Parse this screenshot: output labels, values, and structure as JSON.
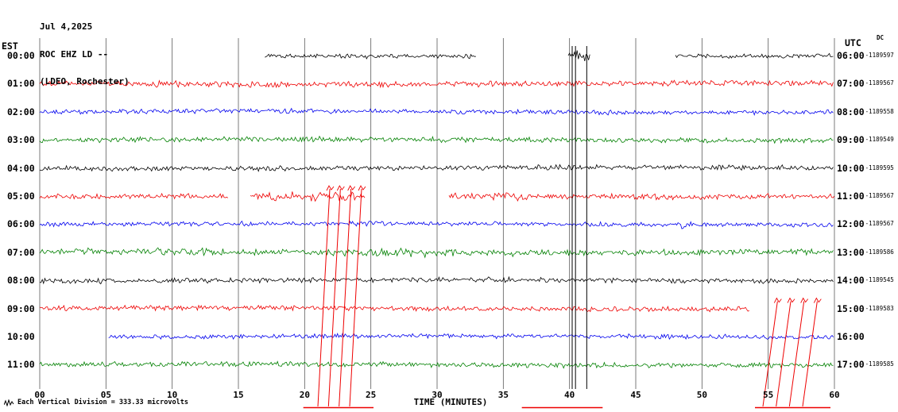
{
  "header": {
    "date": "Jul 4,2025",
    "station": "ROC EHZ LD --",
    "location": "(LDEO, Rochester)"
  },
  "axes": {
    "left_label": "EST",
    "right_label": "UTC",
    "dc_label": "DC"
  },
  "footer": {
    "scale_text": "Each Vertical Division =  333.33 microvolts"
  },
  "palette": {
    "black": "#000000",
    "red": "#ee0000",
    "blue": "#0000ee",
    "green": "#008000",
    "grid": "#5a5a5a"
  },
  "chart_data": {
    "type": "line",
    "title": "ROC EHZ LD -- (LDEO, Rochester) helicorder, Jul 4,2025",
    "xlabel": "TIME (MINUTES)",
    "x_ticks": [
      "00",
      "05",
      "10",
      "15",
      "20",
      "25",
      "30",
      "35",
      "40",
      "45",
      "50",
      "55",
      "60"
    ],
    "x_range_minutes": [
      0,
      60
    ],
    "volts_per_division": "333.33 microvolts",
    "rows": [
      {
        "est": "00:00",
        "utc": "06:00",
        "dc": "-1189597",
        "color": "black",
        "amp": 2.2,
        "segments": [
          [
            17,
            33
          ],
          [
            39.9,
            41.6
          ],
          [
            48,
            60
          ]
        ],
        "bursts": [
          [
            40.0,
            41.5,
            5
          ]
        ]
      },
      {
        "est": "01:00",
        "utc": "07:00",
        "dc": "-1189567",
        "color": "red",
        "amp": 3.0,
        "segments": [
          [
            0,
            60
          ]
        ]
      },
      {
        "est": "02:00",
        "utc": "08:00",
        "dc": "-1189558",
        "color": "blue",
        "amp": 2.4,
        "segments": [
          [
            0,
            60
          ]
        ]
      },
      {
        "est": "03:00",
        "utc": "09:00",
        "dc": "-1189549",
        "color": "green",
        "amp": 2.6,
        "segments": [
          [
            0,
            60
          ]
        ]
      },
      {
        "est": "04:00",
        "utc": "10:00",
        "dc": "-1189595",
        "color": "black",
        "amp": 2.6,
        "segments": [
          [
            0,
            60
          ]
        ]
      },
      {
        "est": "05:00",
        "utc": "11:00",
        "dc": "-1189567",
        "color": "red",
        "amp": 2.8,
        "segments": [
          [
            0,
            14.3
          ],
          [
            15.9,
            24.6
          ],
          [
            30.9,
            60
          ]
        ],
        "bursts": [
          [
            16,
            24.6,
            4.5
          ],
          [
            31,
            37,
            4.0
          ]
        ]
      },
      {
        "est": "06:00",
        "utc": "12:00",
        "dc": "-1189567",
        "color": "blue",
        "amp": 2.4,
        "segments": [
          [
            0,
            60
          ]
        ],
        "bursts": [
          [
            48.2,
            49.2,
            4.0
          ]
        ]
      },
      {
        "est": "07:00",
        "utc": "13:00",
        "dc": "-1189586",
        "color": "green",
        "amp": 3.2,
        "segments": [
          [
            0,
            60
          ]
        ],
        "bursts": [
          [
            7,
            13,
            4.2
          ],
          [
            24,
            31,
            4.2
          ]
        ]
      },
      {
        "est": "08:00",
        "utc": "14:00",
        "dc": "-1189545",
        "color": "black",
        "amp": 2.6,
        "segments": [
          [
            0,
            60
          ]
        ]
      },
      {
        "est": "09:00",
        "utc": "15:00",
        "dc": "-1189583",
        "color": "red",
        "amp": 2.6,
        "segments": [
          [
            0,
            53.6
          ]
        ]
      },
      {
        "est": "10:00",
        "utc": "16:00",
        "dc": "",
        "color": "blue",
        "amp": 2.4,
        "segments": [
          [
            5.2,
            60
          ]
        ]
      },
      {
        "est": "11:00",
        "utc": "17:00",
        "dc": "-1189585",
        "color": "green",
        "amp": 2.6,
        "segments": [
          [
            0,
            60
          ]
        ]
      }
    ],
    "spike_lines": {
      "color": "black",
      "minutes": [
        40.2,
        40.45,
        41.3
      ]
    },
    "event_lines": {
      "color": "red",
      "groups": [
        {
          "top_row": 5,
          "bottom_minutes": [
            21.0,
            21.8,
            22.6,
            23.4
          ],
          "slant_minutes": 0.9
        },
        {
          "top_row": 9,
          "bottom_minutes": [
            54.6,
            55.6,
            56.6,
            57.6
          ],
          "slant_minutes": 1.1
        }
      ]
    },
    "underline_segments_minutes": [
      [
        19.9,
        25.2
      ],
      [
        36.4,
        42.5
      ],
      [
        54.0,
        59.7
      ]
    ]
  }
}
